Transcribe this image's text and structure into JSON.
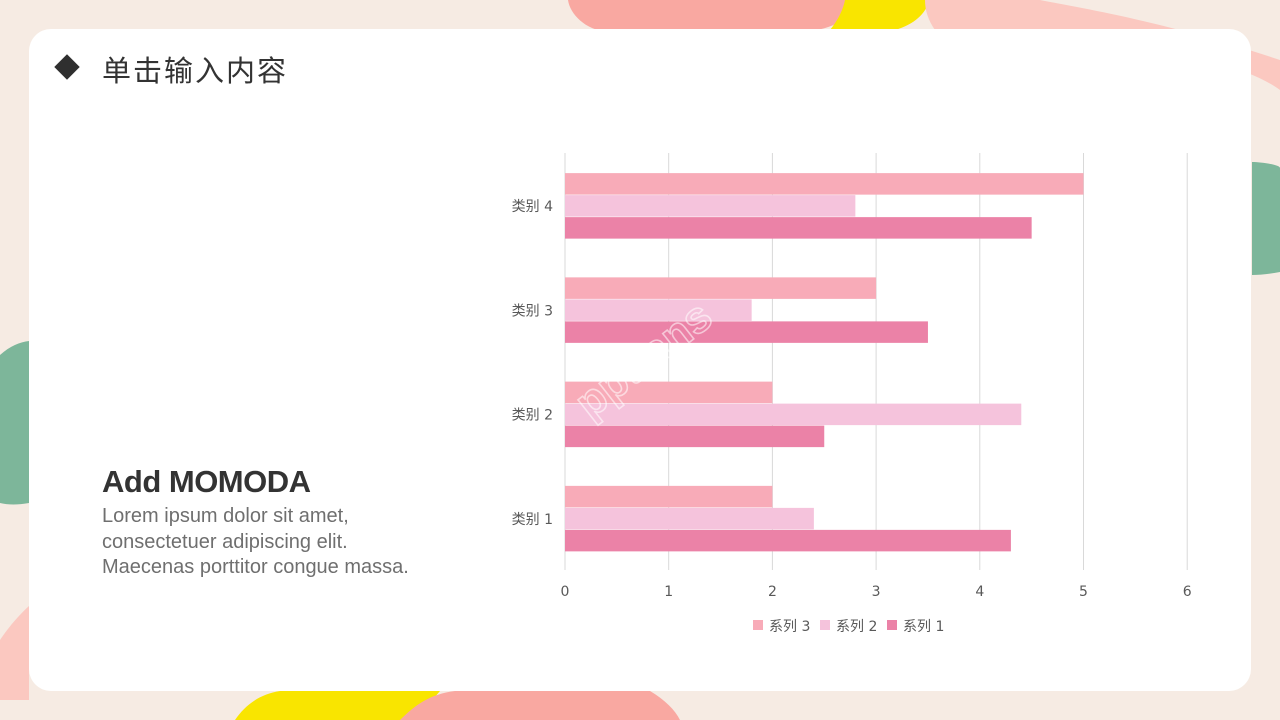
{
  "slide": {
    "title": "单击输入内容",
    "subheading": "Add MOMODA",
    "body_lines": [
      "Lorem ipsum dolor sit amet,",
      "consectetuer adipiscing elit.",
      "Maecenas porttitor congue massa."
    ],
    "watermark": "pptfans"
  },
  "chart_data": {
    "type": "bar",
    "orientation": "horizontal",
    "categories": [
      "类别 1",
      "类别 2",
      "类别 3",
      "类别 4"
    ],
    "series": [
      {
        "name": "系列 1",
        "values": [
          4.3,
          2.5,
          3.5,
          4.5
        ],
        "color": "#eb82a7"
      },
      {
        "name": "系列 2",
        "values": [
          2.4,
          4.4,
          1.8,
          2.8
        ],
        "color": "#f5c3dc"
      },
      {
        "name": "系列 3",
        "values": [
          2,
          2,
          3,
          5
        ],
        "color": "#f8abb8"
      }
    ],
    "xlim": [
      0,
      6
    ],
    "xticks": [
      0,
      1,
      2,
      3,
      4,
      5,
      6
    ],
    "grid": true,
    "legend_position": "bottom",
    "legend_order": [
      "系列 3",
      "系列 2",
      "系列 1"
    ]
  },
  "colors": {
    "background": "#f6ebe3",
    "card": "#ffffff",
    "accent_pink": "#f9a8a1",
    "accent_yellow": "#f9e500",
    "accent_green": "#7db69a"
  }
}
